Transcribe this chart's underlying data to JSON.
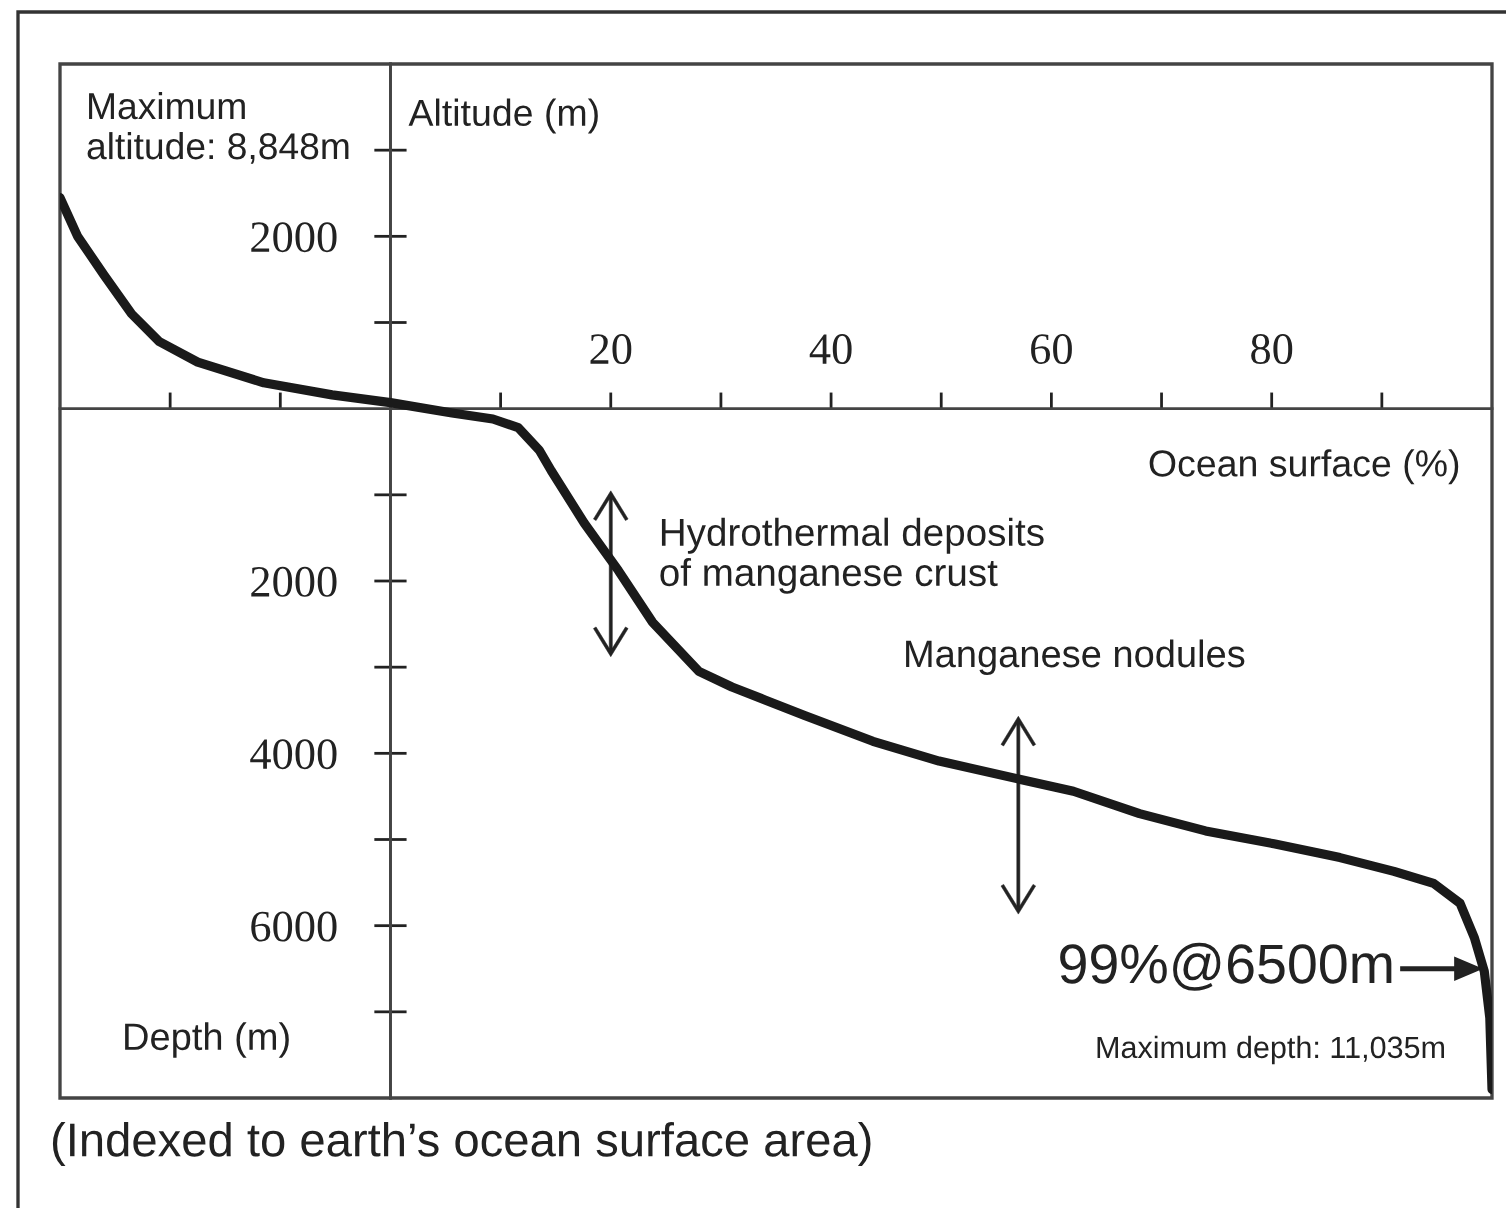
{
  "chart_data": {
    "type": "line",
    "xlabel": "Ocean surface (%)",
    "ylabel": "Altitude (m)",
    "x": [
      -30,
      -28.4,
      -26,
      -23.5,
      -21,
      -17.5,
      -11.5,
      -5.3,
      0,
      5.6,
      9.3,
      11.6,
      13.5,
      14.6,
      17.6,
      20.7,
      23.8,
      28,
      31,
      34,
      37.6,
      43.8,
      49.8,
      57.1,
      62,
      68,
      74,
      80.2,
      86.2,
      91.1,
      94.7,
      97.1,
      98.4,
      99.3,
      99.8,
      100
    ],
    "series": [
      {
        "color": "#1a1a1a",
        "values": [
          2450,
          2000,
          1550,
          1100,
          780,
          540,
          300,
          160,
          70,
          -50,
          -120,
          -220,
          -480,
          -720,
          -1330,
          -1880,
          -2480,
          -3050,
          -3230,
          -3380,
          -3560,
          -3860,
          -4090,
          -4300,
          -4440,
          -4700,
          -4900,
          -5050,
          -5210,
          -5370,
          -5510,
          -5740,
          -6140,
          -6530,
          -7070,
          -7900
        ]
      }
    ],
    "xlim": [
      -30,
      100
    ],
    "ylim": [
      -8000,
      4000
    ],
    "xticks": [
      {
        "value": -20,
        "label": null
      },
      {
        "value": -10,
        "label": null
      },
      {
        "value": 10,
        "label": null
      },
      20,
      {
        "value": 30,
        "label": null
      },
      40,
      {
        "value": 50,
        "label": null
      },
      60,
      {
        "value": 70,
        "label": null
      },
      80,
      {
        "value": 90,
        "label": null
      }
    ],
    "yticks": [
      {
        "value": -7000,
        "label": null
      },
      {
        "value": -6000,
        "label": "6000"
      },
      {
        "value": -5000,
        "label": null
      },
      {
        "value": -4000,
        "label": "4000"
      },
      {
        "value": -3000,
        "label": null
      },
      {
        "value": -2000,
        "label": "2000"
      },
      {
        "value": -1000,
        "label": null
      },
      {
        "value": 1000,
        "label": null
      },
      2000,
      {
        "value": 3000,
        "label": null
      }
    ],
    "line_style": "solid",
    "annotations": [
      "Maximum\naltitude: 8,848m",
      "Depth (m)",
      {
        "text": "Hydrothermal deposits\nof manganese crust",
        "x": 20,
        "y": -1800
      },
      {
        "text": "Manganese nodules",
        "x": 57,
        "y": -4300
      },
      {
        "text": "99%@6500m",
        "x": 99,
        "y": -6500
      },
      "Maximum depth: 11,035m",
      "(Indexed to earth’s ocean surface area)"
    ]
  }
}
